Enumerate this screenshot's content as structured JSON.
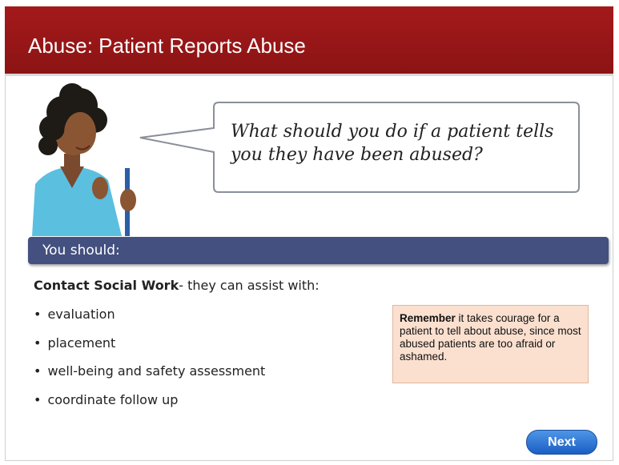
{
  "header": {
    "title": "Abuse: Patient Reports Abuse"
  },
  "bubble": {
    "text": "What should you do if a patient tells you they have been abused?"
  },
  "banner": {
    "text": "You should:"
  },
  "content": {
    "lead_bold": "Contact Social Work",
    "lead_rest": "- they can assist with:",
    "items": [
      "evaluation",
      "placement",
      "well-being and safety assessment",
      "coordinate follow up"
    ]
  },
  "note": {
    "bold": "Remember",
    "text": "it takes courage for a patient to tell about abuse, since most abused patients are too afraid or ashamed."
  },
  "button": {
    "label": "Next"
  }
}
